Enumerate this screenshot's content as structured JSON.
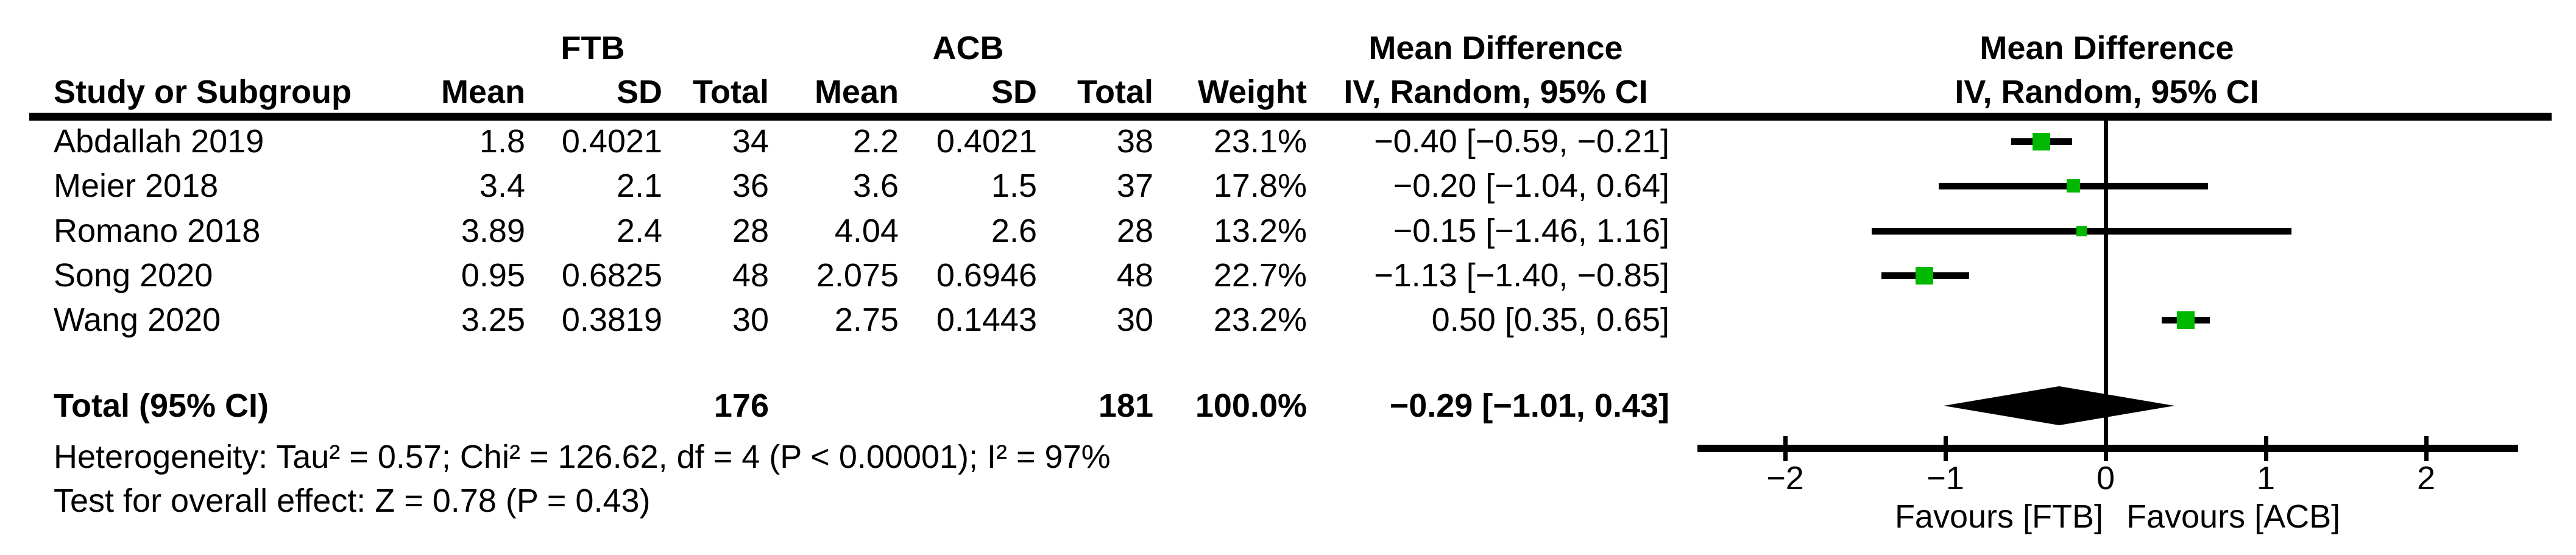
{
  "header": {
    "group_ftb": "FTB",
    "group_acb": "ACB",
    "group_md": "Mean Difference",
    "col_study": "Study or Subgroup",
    "col_mean": "Mean",
    "col_sd": "SD",
    "col_total": "Total",
    "col_weight": "Weight",
    "col_iv": "IV, Random, 95% CI",
    "plot_line1": "Mean Difference",
    "plot_line2": "IV, Random, 95% CI"
  },
  "table": {
    "rows": [
      {
        "study": "Abdallah 2019",
        "ftb_mean": "1.8",
        "ftb_sd": "0.4021",
        "ftb_total": "34",
        "acb_mean": "2.2",
        "acb_sd": "0.4021",
        "acb_total": "38",
        "weight": "23.1%",
        "ci": "−0.40 [−0.59, −0.21]"
      },
      {
        "study": "Meier 2018",
        "ftb_mean": "3.4",
        "ftb_sd": "2.1",
        "ftb_total": "36",
        "acb_mean": "3.6",
        "acb_sd": "1.5",
        "acb_total": "37",
        "weight": "17.8%",
        "ci": "−0.20 [−1.04, 0.64]"
      },
      {
        "study": "Romano 2018",
        "ftb_mean": "3.89",
        "ftb_sd": "2.4",
        "ftb_total": "28",
        "acb_mean": "4.04",
        "acb_sd": "2.6",
        "acb_total": "28",
        "weight": "13.2%",
        "ci": "−0.15 [−1.46, 1.16]"
      },
      {
        "study": "Song 2020",
        "ftb_mean": "0.95",
        "ftb_sd": "0.6825",
        "ftb_total": "48",
        "acb_mean": "2.075",
        "acb_sd": "0.6946",
        "acb_total": "48",
        "weight": "22.7%",
        "ci": "−1.13 [−1.40, −0.85]"
      },
      {
        "study": "Wang 2020",
        "ftb_mean": "3.25",
        "ftb_sd": "0.3819",
        "ftb_total": "30",
        "acb_mean": "2.75",
        "acb_sd": "0.1443",
        "acb_total": "30",
        "weight": "23.2%",
        "ci": "0.50 [0.35, 0.65]"
      }
    ],
    "total_row": {
      "label": "Total (95% CI)",
      "ftb_total": "176",
      "acb_total": "181",
      "weight": "100.0%",
      "ci": "−0.29 [−1.01, 0.43]"
    },
    "footer": {
      "heterogeneity": "Heterogeneity: Tau² = 0.57; Chi² = 126.62, df = 4 (P < 0.00001); I² = 97%",
      "overall_effect": "Test for overall effect: Z = 0.78 (P = 0.43)"
    }
  },
  "chart_data": {
    "type": "forest",
    "effect_measure": "Mean Difference, IV, Random, 95% CI",
    "groups": {
      "experimental": "FTB",
      "control": "ACB"
    },
    "marker_color": "#00B800",
    "x_axis": {
      "ticks": [
        -2,
        -1,
        0,
        1,
        2
      ],
      "range": [
        -2.55,
        2.55
      ],
      "label_left": "Favours [FTB]",
      "label_right": "Favours [ACB]"
    },
    "studies": [
      {
        "name": "Abdallah 2019",
        "md": -0.4,
        "ci_low": -0.59,
        "ci_high": -0.21,
        "weight": 23.1
      },
      {
        "name": "Meier 2018",
        "md": -0.2,
        "ci_low": -1.04,
        "ci_high": 0.64,
        "weight": 17.8
      },
      {
        "name": "Romano 2018",
        "md": -0.15,
        "ci_low": -1.46,
        "ci_high": 1.16,
        "weight": 13.2
      },
      {
        "name": "Song 2020",
        "md": -1.13,
        "ci_low": -1.4,
        "ci_high": -0.85,
        "weight": 22.7
      },
      {
        "name": "Wang 2020",
        "md": 0.5,
        "ci_low": 0.35,
        "ci_high": 0.65,
        "weight": 23.2
      }
    ],
    "total": {
      "md": -0.29,
      "ci_low": -1.01,
      "ci_high": 0.43
    }
  }
}
